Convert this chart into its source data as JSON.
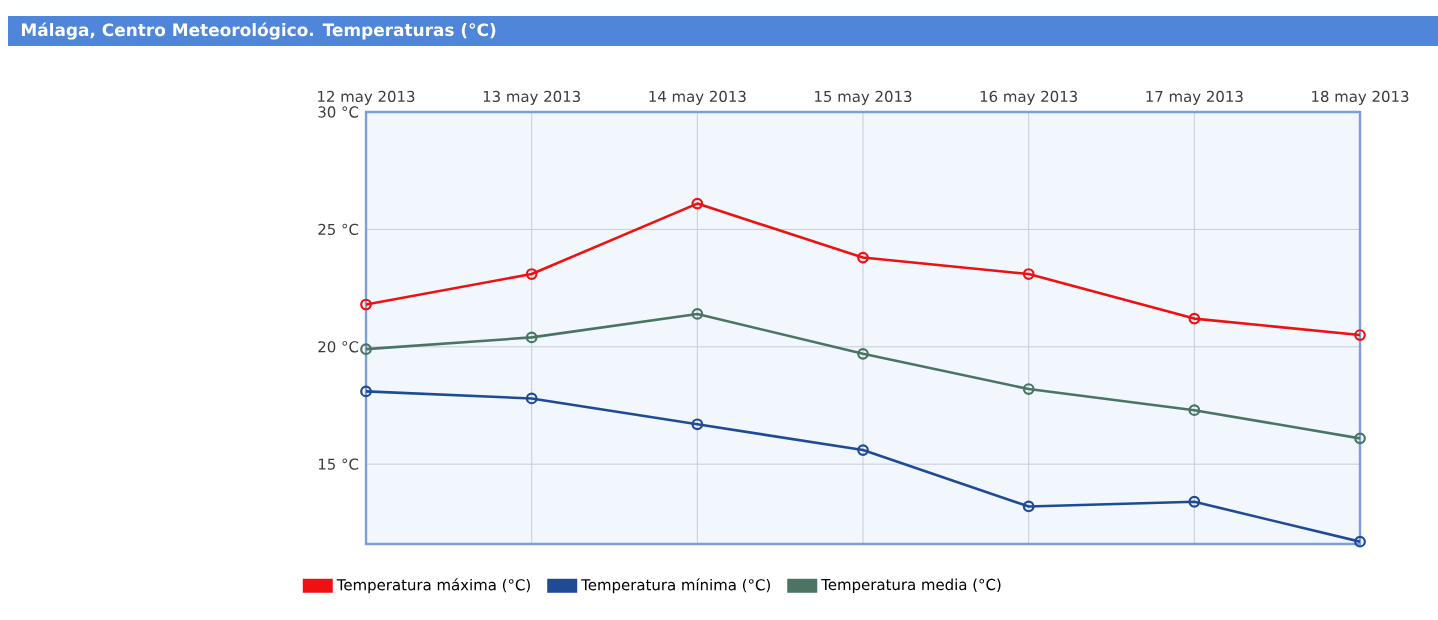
{
  "chart_data": {
    "type": "line",
    "title": "Málaga, Centro Meteorológico. Temperaturas (°C)",
    "categories": [
      "12 may 2013",
      "13 may 2013",
      "14 may 2013",
      "15 may 2013",
      "16 may 2013",
      "17 may 2013",
      "18 may 2013"
    ],
    "series": [
      {
        "name": "Temperatura máxima (°C)",
        "color": "#ee1111",
        "values": [
          21.8,
          23.1,
          26.1,
          23.8,
          23.1,
          21.2,
          20.5
        ]
      },
      {
        "name": "Temperatura mínima (°C)",
        "color": "#1f4b96",
        "values": [
          18.1,
          17.8,
          16.7,
          15.6,
          13.2,
          13.4,
          11.7
        ]
      },
      {
        "name": "Temperatura media (°C)",
        "color": "#4a7563",
        "values": [
          19.9,
          20.4,
          21.4,
          19.7,
          18.2,
          17.3,
          16.1
        ]
      }
    ],
    "ylim": [
      11.6,
      30
    ],
    "yticks": [
      {
        "value": 15,
        "label": "15 °C"
      },
      {
        "value": 20,
        "label": "20 °C"
      },
      {
        "value": 25,
        "label": "25 °C"
      },
      {
        "value": 30,
        "label": "30 °C"
      }
    ],
    "grid": true,
    "legend": "bottom",
    "marker": "circle"
  }
}
